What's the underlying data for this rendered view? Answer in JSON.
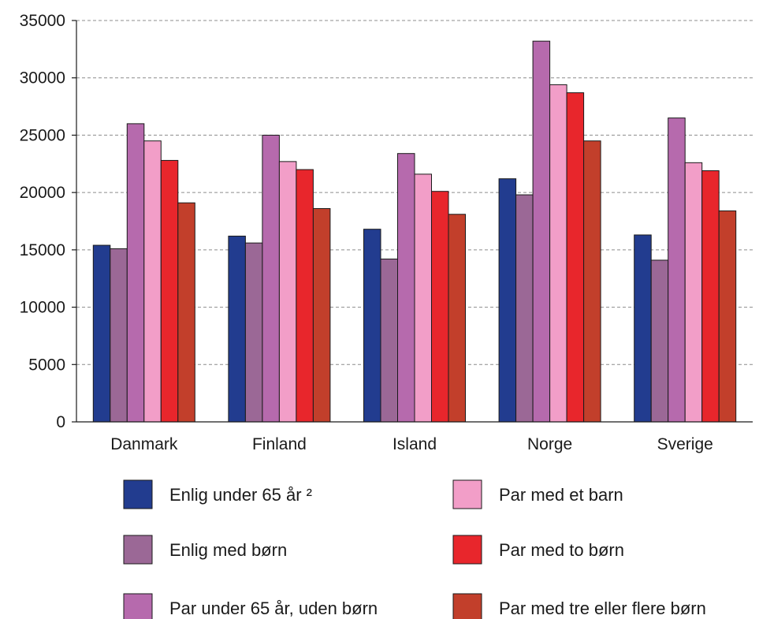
{
  "chart_data": {
    "type": "bar",
    "categories": [
      "Danmark",
      "Finland",
      "Island",
      "Norge",
      "Sverige"
    ],
    "ylim": [
      0,
      35000
    ],
    "yticks": [
      0,
      5000,
      10000,
      15000,
      20000,
      25000,
      30000,
      35000
    ],
    "grid": true,
    "legend_position": "bottom",
    "series": [
      {
        "name": "Enlig under 65 år ²",
        "color": "#223c8f",
        "values": [
          15400,
          16200,
          16800,
          21200,
          16300
        ]
      },
      {
        "name": "Enlig med børn",
        "color": "#9b6896",
        "values": [
          15100,
          15600,
          14200,
          19800,
          14100
        ]
      },
      {
        "name": "Par under 65 år, uden børn",
        "color": "#b66aad",
        "values": [
          26000,
          25000,
          23400,
          33200,
          26500
        ]
      },
      {
        "name": "Par med et barn",
        "color": "#f29ec8",
        "values": [
          24500,
          22700,
          21600,
          29400,
          22600
        ]
      },
      {
        "name": "Par med to børn",
        "color": "#e8262c",
        "values": [
          22800,
          22000,
          20100,
          28700,
          21900
        ]
      },
      {
        "name": "Par med tre eller flere børn",
        "color": "#c23f2b",
        "values": [
          19100,
          18600,
          18100,
          24500,
          18400
        ]
      }
    ]
  }
}
